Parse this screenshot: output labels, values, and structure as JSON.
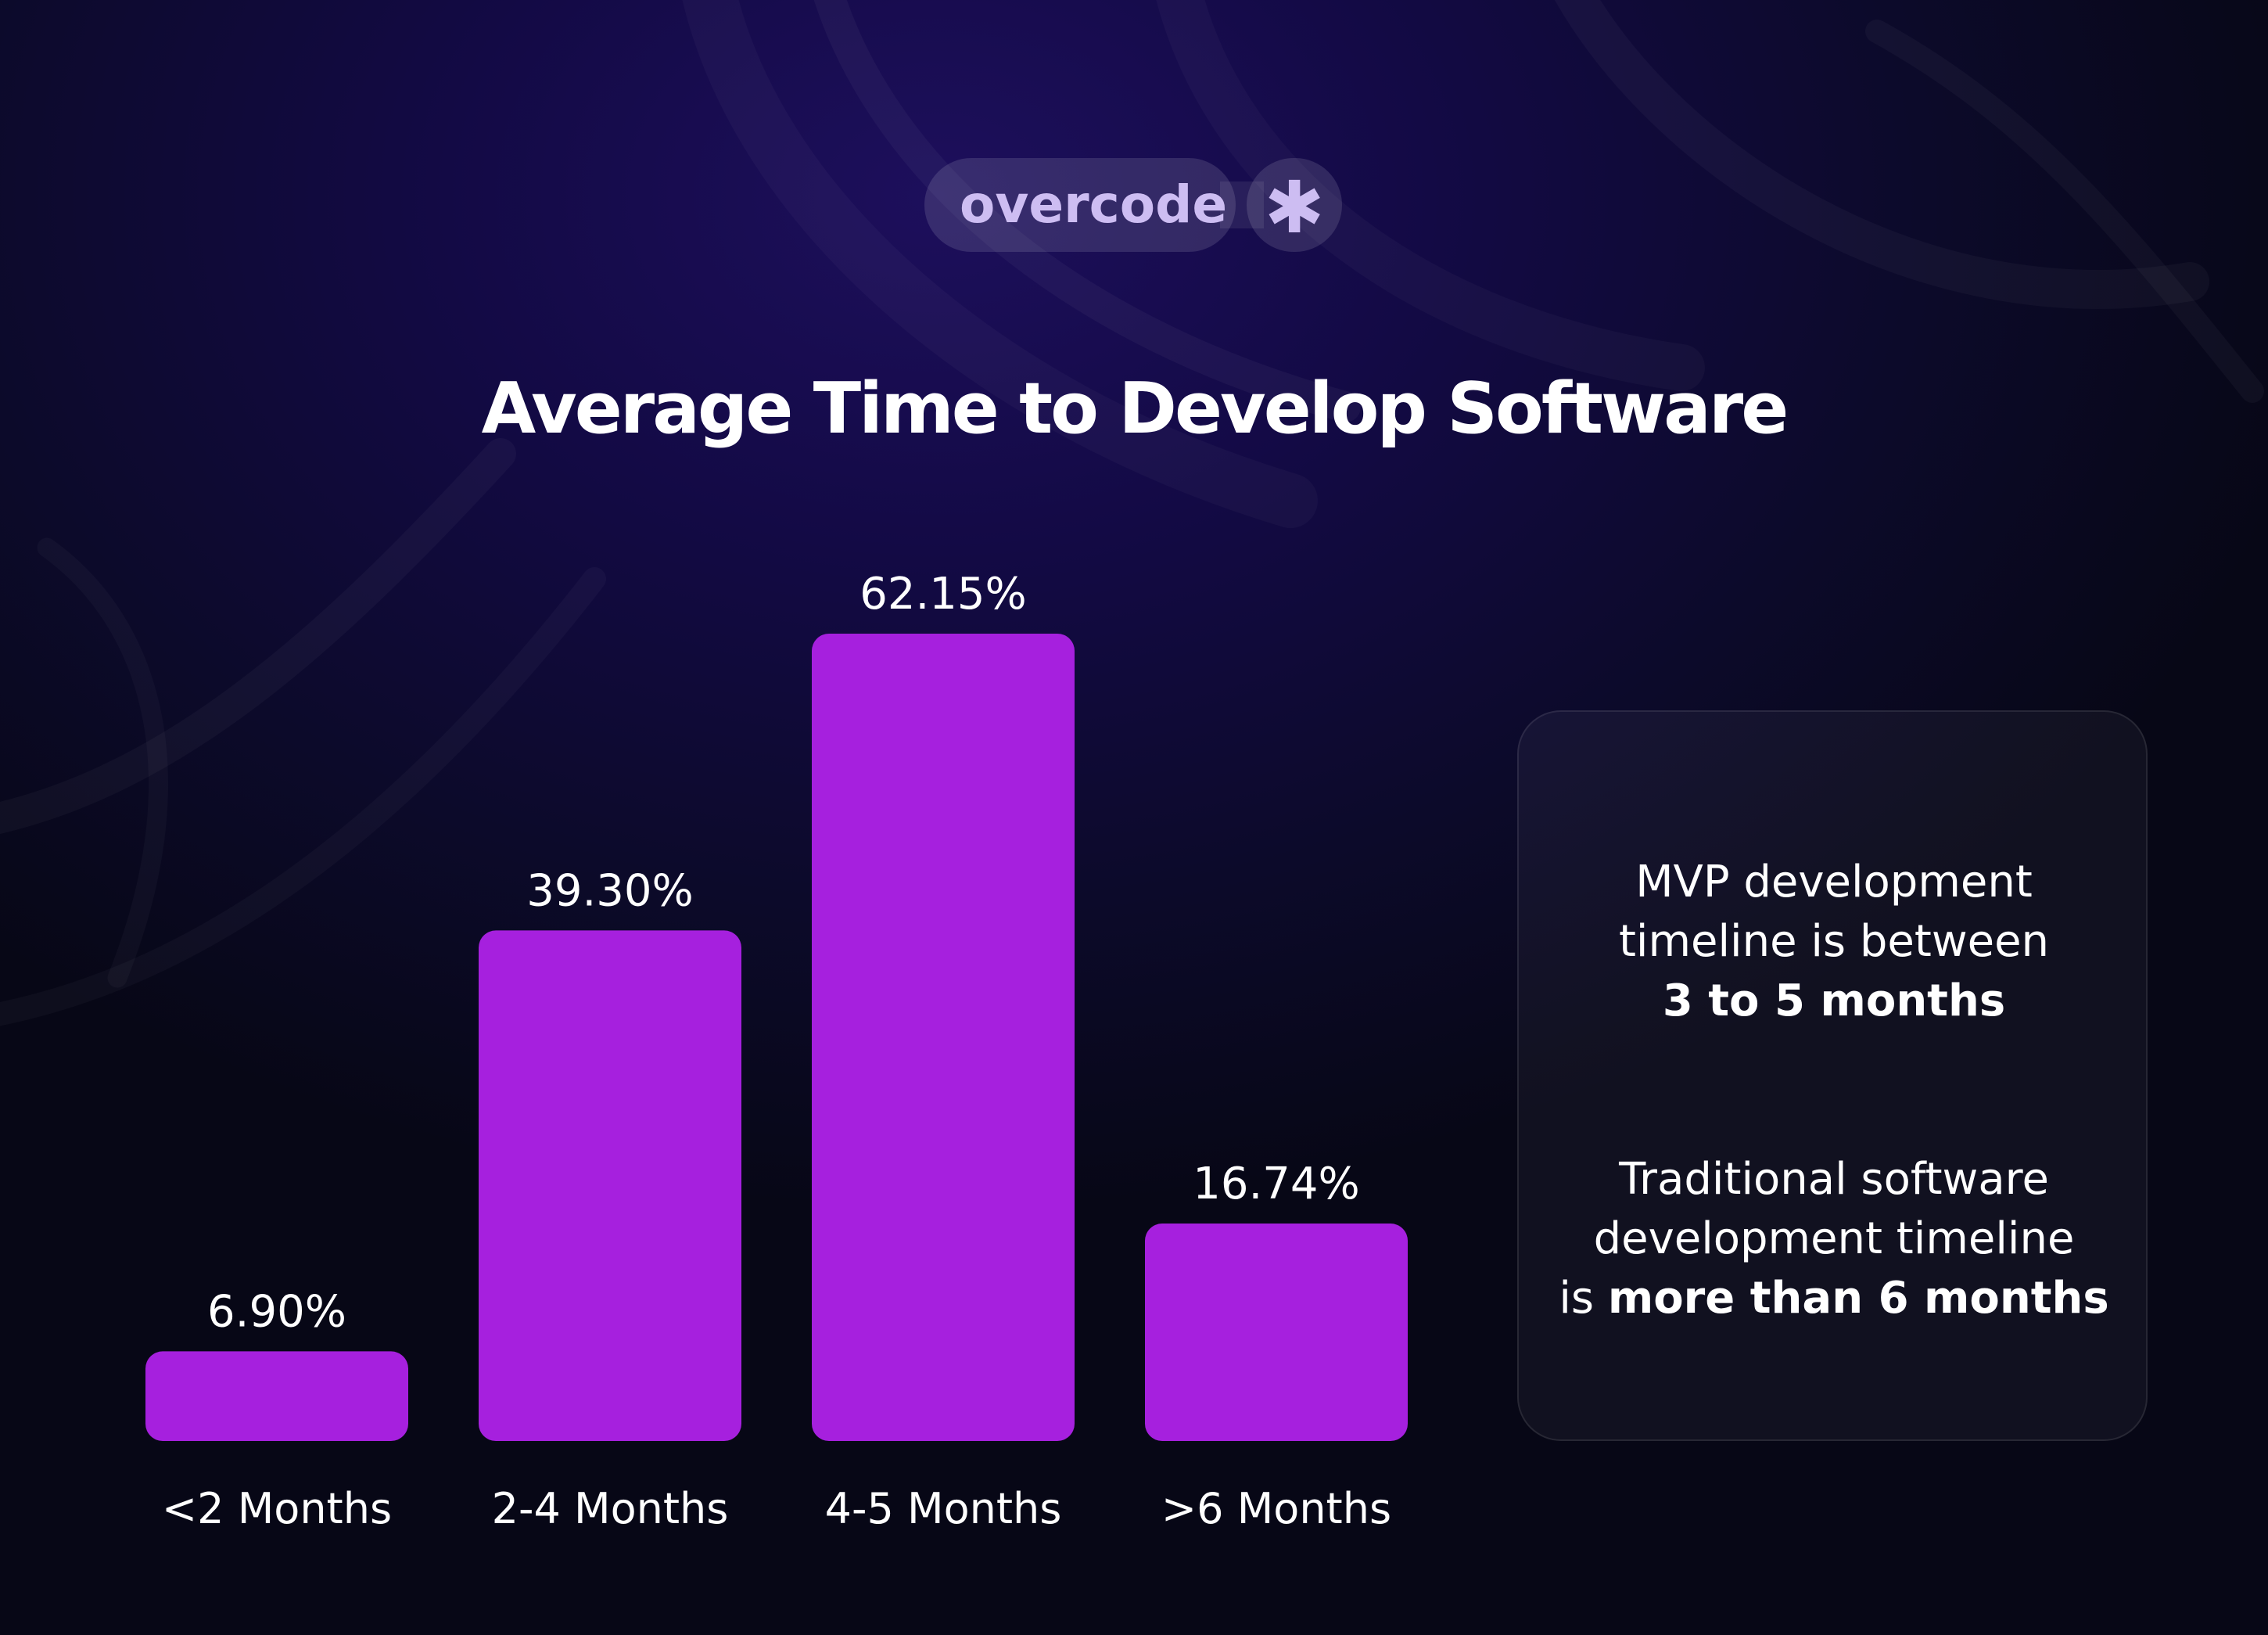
{
  "brand": {
    "name": "overcode",
    "mark": "✱"
  },
  "chart_data": {
    "type": "bar",
    "title": "Average Time to Develop Software",
    "categories": [
      "<2 Months",
      "2-4 Months",
      "4-5 Months",
      ">6 Months"
    ],
    "values": [
      6.9,
      39.3,
      62.15,
      16.74
    ],
    "value_labels": [
      "6.90%",
      "39.30%",
      "62.15%",
      "16.74%"
    ],
    "unit": "%",
    "ylim": [
      0,
      62.15
    ],
    "grid": false,
    "bar_color": "#a620de"
  },
  "notes": [
    {
      "line1": "MVP development",
      "line2": "timeline is between",
      "highlight": "3 to 5 months"
    },
    {
      "line1": "Traditional software",
      "line2": "development timeline",
      "prefix": "is ",
      "highlight": "more than 6 months"
    }
  ]
}
